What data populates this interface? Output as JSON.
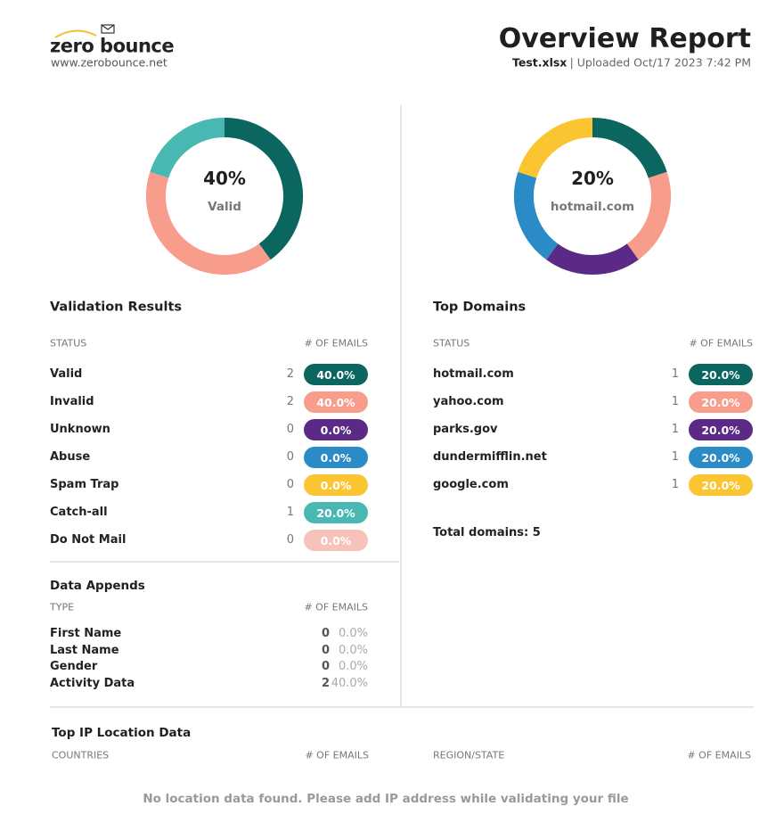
{
  "header": {
    "logo": "zero bounce",
    "website": "www.zerobounce.net",
    "title": "Overview Report",
    "file": "Test.xlsx",
    "uploaded": "| Uploaded Oct/17 2023 7:42 PM"
  },
  "validation": {
    "donut": {
      "value": "40%",
      "label": "Valid"
    },
    "title": "Validation Results",
    "columns": [
      "STATUS",
      "# OF EMAILS"
    ],
    "rows": [
      {
        "name": "Valid",
        "count": 2,
        "percent": 40,
        "percent_label": "40.0%",
        "color": "#0b6660"
      },
      {
        "name": "Invalid",
        "count": 2,
        "percent": 40,
        "percent_label": "40.0%",
        "color": "#f89d8c"
      },
      {
        "name": "Unknown",
        "count": 0,
        "percent": 0,
        "percent_label": "0.0%",
        "color": "#5b2a86"
      },
      {
        "name": "Abuse",
        "count": 0,
        "percent": 0,
        "percent_label": "0.0%",
        "color": "#2a8bc7"
      },
      {
        "name": "Spam Trap",
        "count": 0,
        "percent": 0,
        "percent_label": "0.0%",
        "color": "#fbc531"
      },
      {
        "name": "Catch-all",
        "count": 1,
        "percent": 20,
        "percent_label": "20.0%",
        "color": "#49b8b3"
      },
      {
        "name": "Do Not Mail",
        "count": 0,
        "percent": 0,
        "percent_label": "0.0%",
        "color": "#f7c2b9"
      }
    ]
  },
  "domains": {
    "donut": {
      "value": "20%",
      "label": "hotmail.com"
    },
    "title": "Top Domains",
    "columns": [
      "STATUS",
      "# OF EMAILS"
    ],
    "rows": [
      {
        "name": "hotmail.com",
        "count": 1,
        "percent": 20,
        "percent_label": "20.0%",
        "color": "#0b6660"
      },
      {
        "name": "yahoo.com",
        "count": 1,
        "percent": 20,
        "percent_label": "20.0%",
        "color": "#f89d8c"
      },
      {
        "name": "parks.gov",
        "count": 1,
        "percent": 20,
        "percent_label": "20.0%",
        "color": "#5b2a86"
      },
      {
        "name": "dundermifflin.net",
        "count": 1,
        "percent": 20,
        "percent_label": "20.0%",
        "color": "#2a8bc7"
      },
      {
        "name": "google.com",
        "count": 1,
        "percent": 20,
        "percent_label": "20.0%",
        "color": "#fbc531"
      }
    ],
    "total": "Total domains: 5"
  },
  "appends": {
    "title": "Data Appends",
    "columns": [
      "TYPE",
      "# OF EMAILS"
    ],
    "rows": [
      {
        "name": "First Name",
        "count": 0,
        "percent": "0.0%"
      },
      {
        "name": "Last Name",
        "count": 0,
        "percent": "0.0%"
      },
      {
        "name": "Gender",
        "count": 0,
        "percent": "0.0%"
      },
      {
        "name": "Activity Data",
        "count": 2,
        "percent": "40.0%"
      }
    ]
  },
  "ip_location": {
    "title": "Top IP Location Data",
    "columns": [
      "COUNTRIES",
      "# OF EMAILS",
      "REGION/STATE",
      "# OF EMAILS"
    ],
    "message": "No location data found. Please add IP address while validating your file"
  }
}
